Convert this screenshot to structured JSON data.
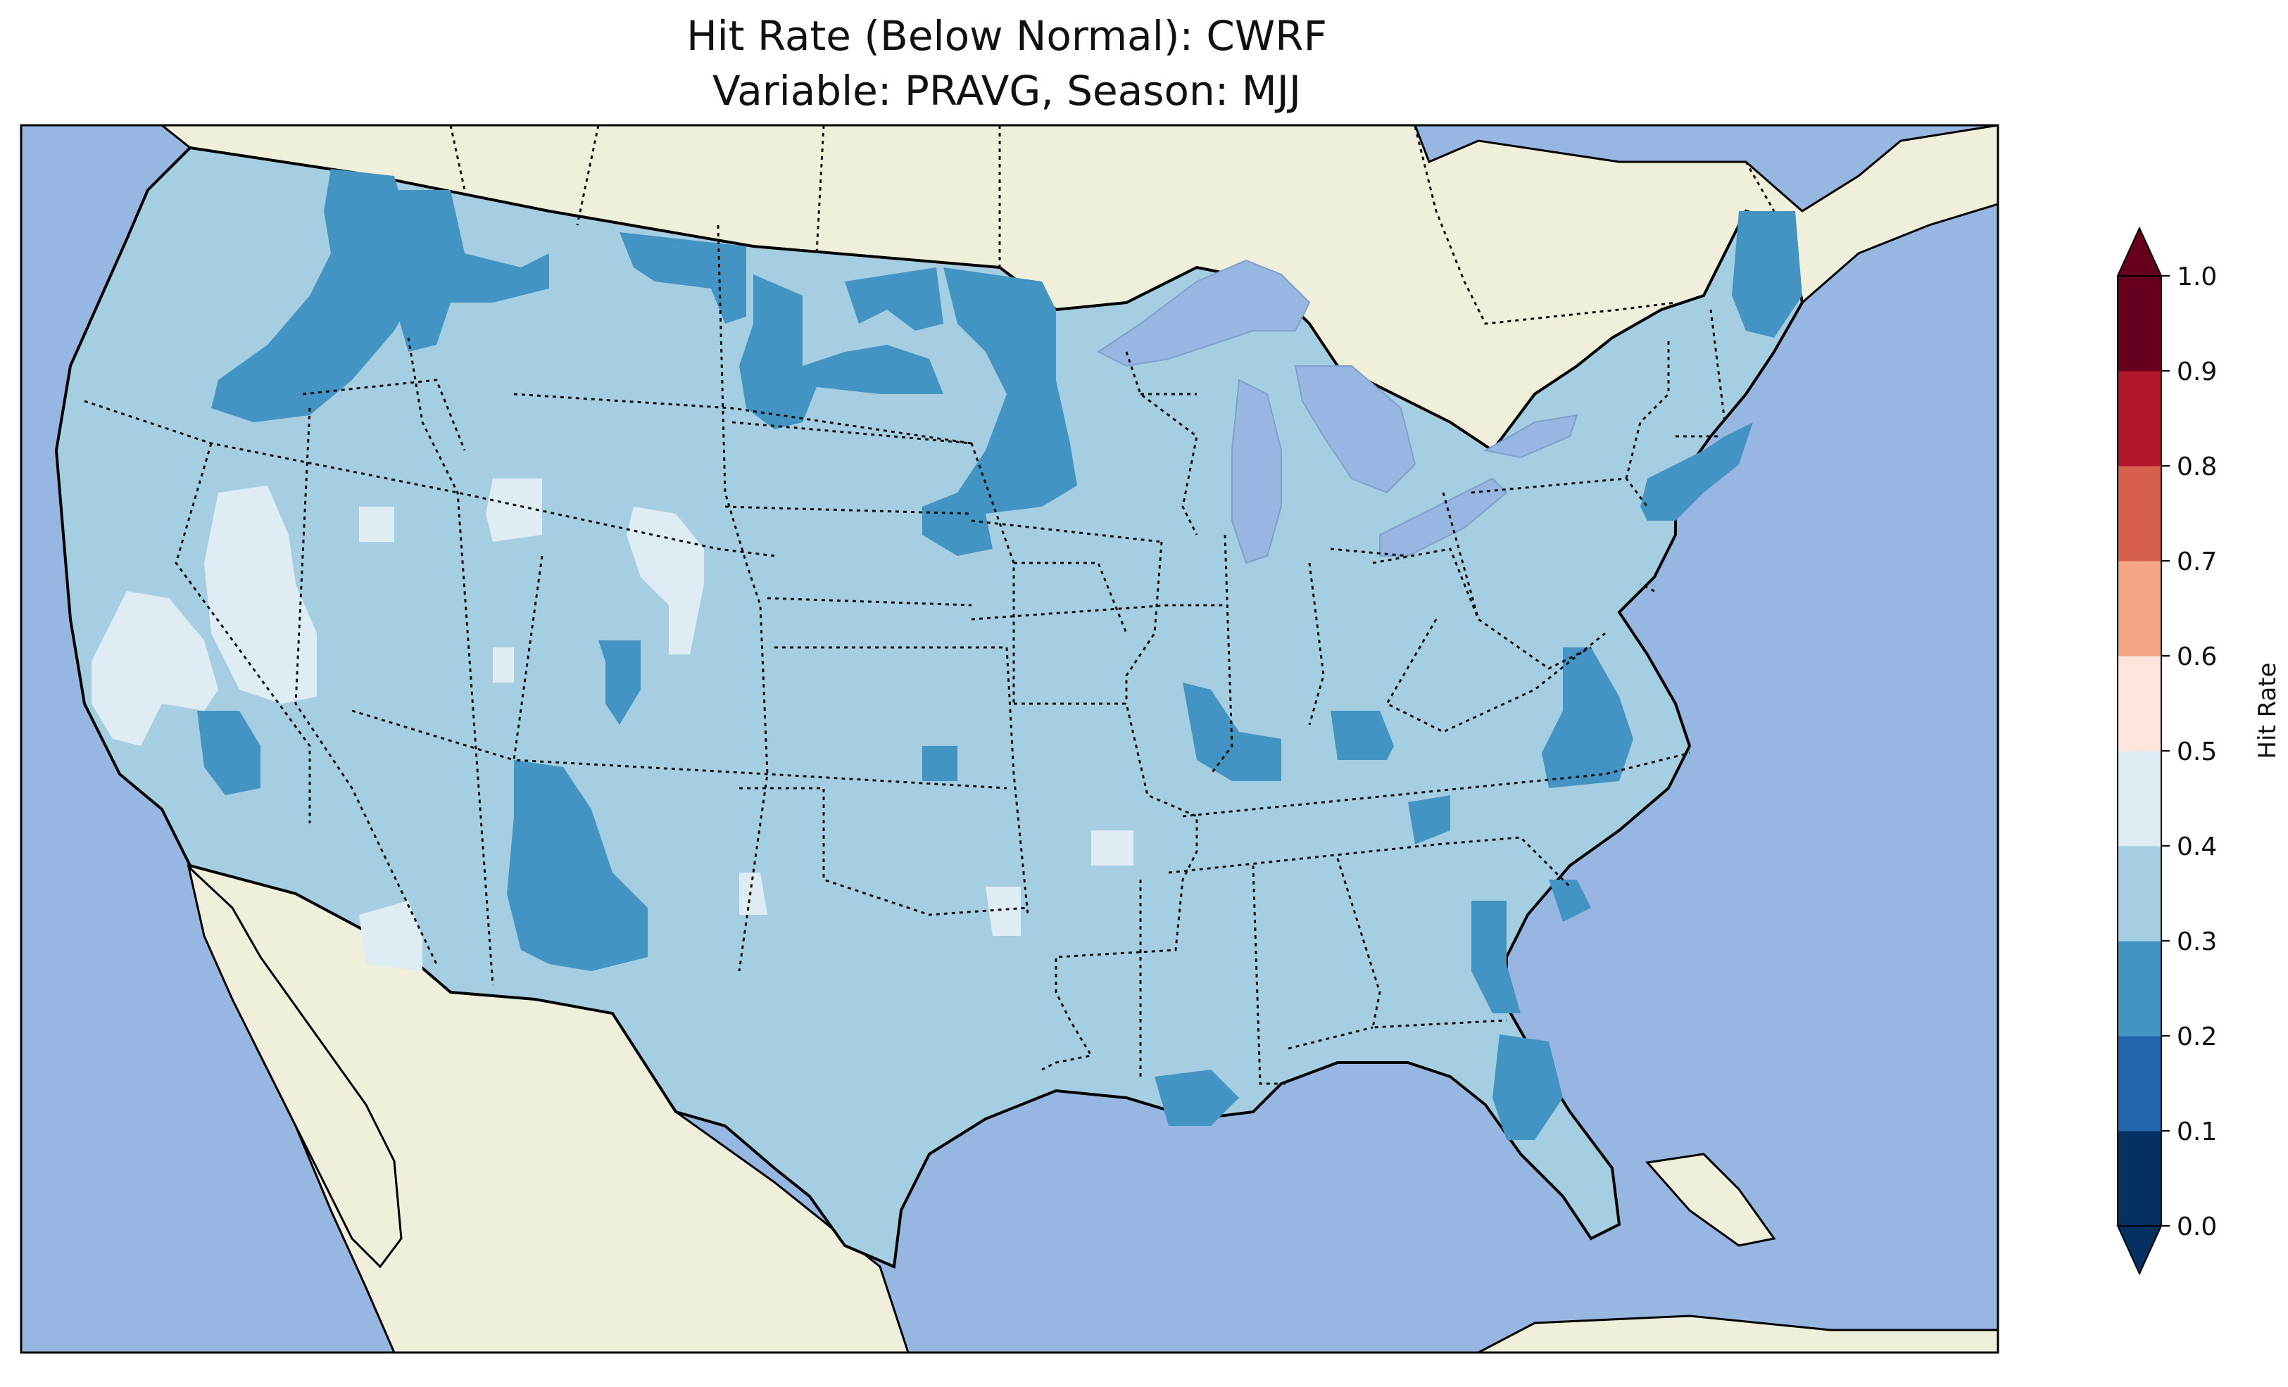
{
  "title_line1": "Hit Rate (Below Normal): CWRF",
  "title_line2": "Variable: PRAVG, Season: MJJ",
  "colorbar": {
    "label": "Hit Rate",
    "ticks": [
      "0.0",
      "0.1",
      "0.2",
      "0.3",
      "0.4",
      "0.5",
      "0.6",
      "0.7",
      "0.8",
      "0.9",
      "1.0"
    ],
    "bins": [
      {
        "range": [
          0.0,
          0.1
        ],
        "color": "#053061"
      },
      {
        "range": [
          0.1,
          0.2
        ],
        "color": "#2166ac"
      },
      {
        "range": [
          0.2,
          0.3
        ],
        "color": "#4393c3"
      },
      {
        "range": [
          0.3,
          0.4
        ],
        "color": "#a6cee3"
      },
      {
        "range": [
          0.4,
          0.5
        ],
        "color": "#e0ecf4"
      },
      {
        "range": [
          0.5,
          0.6
        ],
        "color": "#fbe5dc"
      },
      {
        "range": [
          0.6,
          0.7
        ],
        "color": "#f4a582"
      },
      {
        "range": [
          0.7,
          0.8
        ],
        "color": "#d6604d"
      },
      {
        "range": [
          0.8,
          0.9
        ],
        "color": "#b2182b"
      },
      {
        "range": [
          0.9,
          1.0
        ],
        "color": "#67001f"
      }
    ],
    "extend": "both"
  },
  "map": {
    "extent": "Contiguous United States",
    "ocean_color": "#97b6e1",
    "land_color": "#efefdb",
    "dominant_bin": "0.3-0.4",
    "features": [
      "coastlines",
      "state borders",
      "country borders",
      "lakes"
    ]
  }
}
